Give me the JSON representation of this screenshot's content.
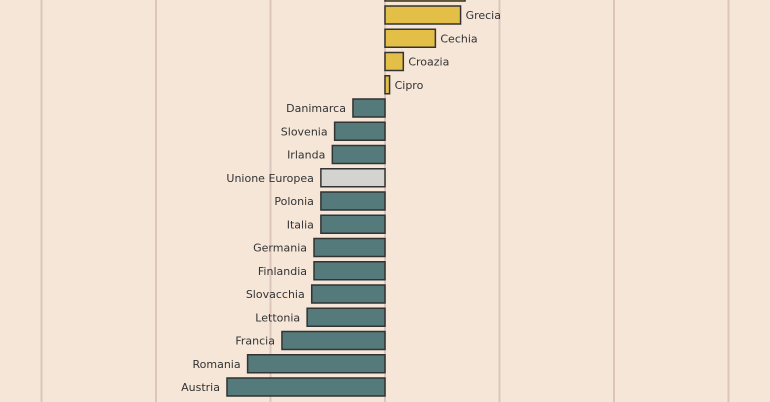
{
  "chart_data": {
    "type": "bar",
    "orientation": "horizontal",
    "title": "",
    "xlabel": "",
    "ylabel": "",
    "grid": true,
    "legend": "none",
    "xlim": [
      -7,
      15
    ],
    "categories": [
      "Grecia",
      "Cechia",
      "Croazia",
      "Cipro",
      "Danimarca",
      "Slovenia",
      "Irlanda",
      "Unione Europea",
      "Polonia",
      "Italia",
      "Germania",
      "Finlandia",
      "Slovacchia",
      "Lettonia",
      "Francia",
      "Romania",
      "Austria"
    ],
    "values": [
      3.3,
      2.2,
      0.8,
      0.2,
      -1.4,
      -2.2,
      -2.3,
      -2.8,
      -2.8,
      -2.8,
      -3.1,
      -3.1,
      -3.2,
      -3.4,
      -4.5,
      -6.0,
      -6.9
    ],
    "highlight_category": "Unione Europea",
    "colors": {
      "positive": "#e3bf48",
      "negative": "#557a7b",
      "highlight": "#d3d3d0",
      "bar_stroke": "#333333",
      "grid": "#dcc5bd",
      "background": "#f5e6d8",
      "label": "#333333"
    }
  }
}
